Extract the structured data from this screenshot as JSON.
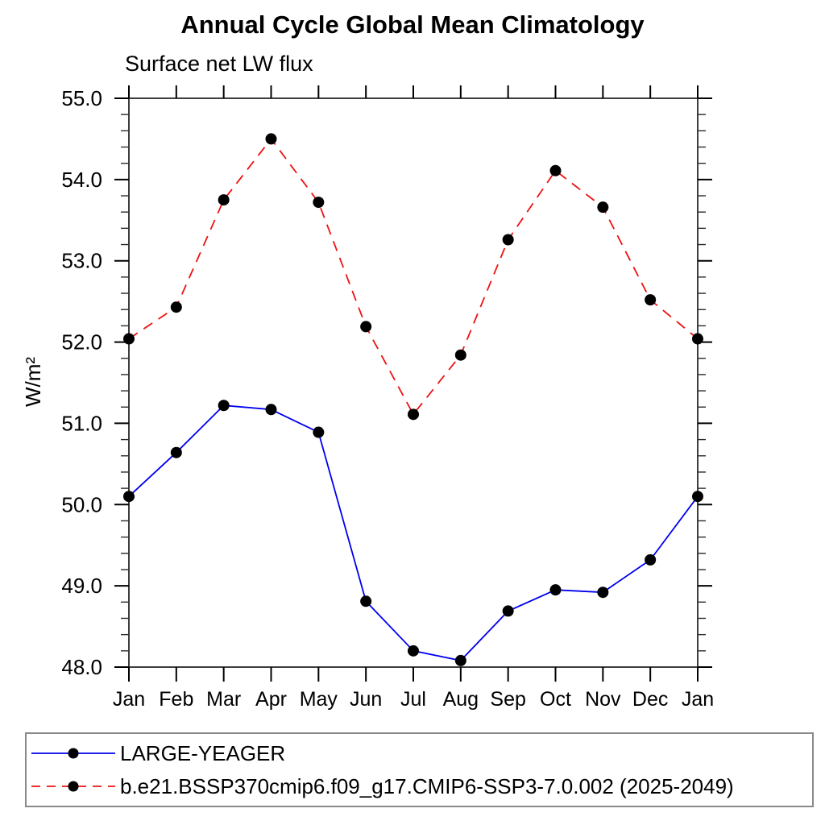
{
  "chart_data": {
    "type": "line",
    "title": "Annual Cycle Global Mean Climatology",
    "subtitle": "Surface net LW flux",
    "ylabel": "W/m²",
    "categories": [
      "Jan",
      "Feb",
      "Mar",
      "Apr",
      "May",
      "Jun",
      "Jul",
      "Aug",
      "Sep",
      "Oct",
      "Nov",
      "Dec",
      "Jan"
    ],
    "ylim": [
      48.0,
      55.0
    ],
    "ytick_labels": [
      "48.0",
      "49.0",
      "50.0",
      "51.0",
      "52.0",
      "53.0",
      "54.0",
      "55.0"
    ],
    "ytick_major_interval": 1.0,
    "ytick_minor_interval": 0.2,
    "grid": false,
    "legend_position": "bottom",
    "axis_color": "#3d3d3d",
    "series": [
      {
        "name": "LARGE-YEAGER",
        "color": "#0000ee",
        "line_style": "solid",
        "marker": "filled-circle",
        "marker_color": "#000000",
        "values": [
          50.1,
          50.64,
          51.22,
          51.17,
          50.89,
          48.81,
          48.2,
          48.08,
          48.69,
          48.95,
          48.92,
          49.32,
          50.1
        ]
      },
      {
        "name": "b.e21.BSSP370cmip6.f09_g17.CMIP6-SSP3-7.0.002 (2025-2049)",
        "color": "#ee1111",
        "line_style": "dashed",
        "marker": "filled-circle",
        "marker_color": "#000000",
        "values": [
          52.04,
          52.43,
          53.75,
          54.5,
          53.72,
          52.19,
          51.11,
          51.84,
          53.26,
          54.11,
          53.66,
          52.52,
          52.04
        ]
      }
    ]
  }
}
